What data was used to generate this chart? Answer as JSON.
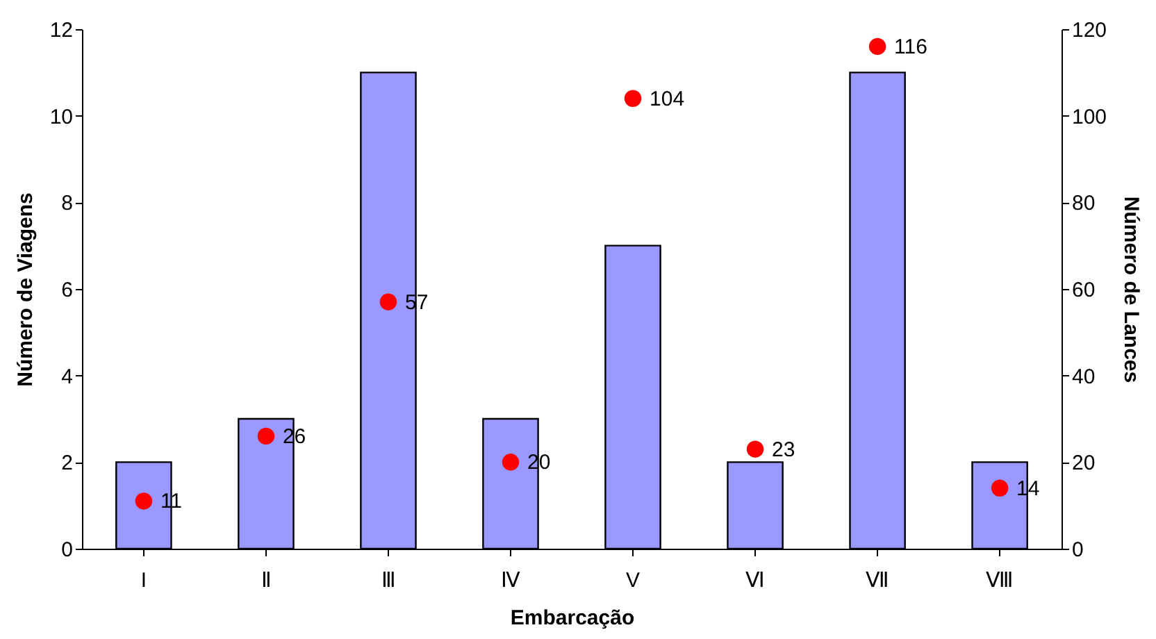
{
  "chart_data": {
    "type": "bar",
    "xlabel": "Embarcação",
    "ylabel": "Número de Viagens",
    "y2label": "Número de Lances",
    "categories": [
      "I",
      "Ⅱ",
      "Ⅲ",
      "Ⅳ",
      "V",
      "Ⅵ",
      "Ⅶ",
      "Ⅷ"
    ],
    "series": [
      {
        "color": "#9999ff",
        "values": [
          2,
          3,
          11,
          3,
          7,
          2,
          11,
          2
        ]
      },
      {
        "type": "scatter",
        "axis": "y2",
        "color": "#ff0000",
        "x": [
          "I",
          "Ⅱ",
          "Ⅲ",
          "Ⅳ",
          "V",
          "Ⅵ",
          "Ⅶ",
          "Ⅷ"
        ],
        "values": [
          11,
          26,
          57,
          20,
          104,
          23,
          116,
          14
        ],
        "data_labels": true
      }
    ],
    "ylim": [
      0,
      12
    ],
    "yticks": [
      0,
      2,
      4,
      6,
      8,
      10,
      12
    ],
    "y2lim": [
      0,
      120
    ],
    "y2ticks": [
      0,
      20,
      40,
      60,
      80,
      100,
      120
    ],
    "marker": "circle"
  }
}
